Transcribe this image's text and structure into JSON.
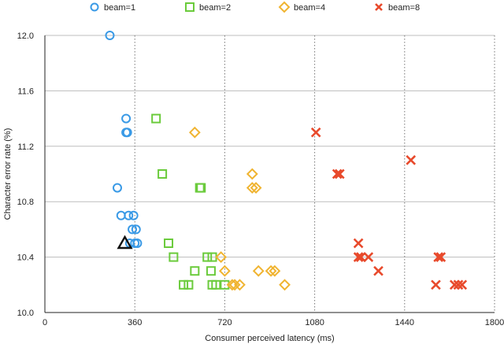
{
  "chart_data": {
    "type": "scatter",
    "title": "",
    "xlabel": "Consumer perceived latency (ms)",
    "ylabel": "Character error rate (%)",
    "xlim": [
      0,
      1800
    ],
    "ylim": [
      10.0,
      12.0
    ],
    "xticks": [
      0,
      360,
      720,
      1080,
      1440,
      1800
    ],
    "yticks": [
      10.0,
      10.4,
      10.8,
      11.2,
      11.6,
      12.0
    ],
    "x_tick_labels": [
      "0",
      "360",
      "720",
      "1080",
      "1440",
      "1800"
    ],
    "y_tick_labels": [
      "10.0",
      "10.4",
      "10.8",
      "11.2",
      "11.6",
      "12.0"
    ],
    "grid": {
      "horizontal": "solid",
      "vertical": "dotted"
    },
    "legend_position": "top",
    "series": [
      {
        "name": "beam=1",
        "marker": "circle",
        "color": "#3a9ae6",
        "points": [
          [
            260,
            12.0
          ],
          [
            325,
            11.4
          ],
          [
            325,
            11.3
          ],
          [
            330,
            11.3
          ],
          [
            290,
            10.9
          ],
          [
            305,
            10.7
          ],
          [
            335,
            10.7
          ],
          [
            355,
            10.7
          ],
          [
            350,
            10.6
          ],
          [
            365,
            10.6
          ],
          [
            340,
            10.5
          ],
          [
            360,
            10.5
          ],
          [
            370,
            10.5
          ]
        ]
      },
      {
        "name": "beam=2",
        "marker": "square",
        "color": "#6bcb3c",
        "points": [
          [
            445,
            11.4
          ],
          [
            470,
            11.0
          ],
          [
            620,
            10.9
          ],
          [
            625,
            10.9
          ],
          [
            495,
            10.5
          ],
          [
            515,
            10.4
          ],
          [
            650,
            10.4
          ],
          [
            670,
            10.4
          ],
          [
            600,
            10.3
          ],
          [
            665,
            10.3
          ],
          [
            555,
            10.2
          ],
          [
            575,
            10.2
          ],
          [
            670,
            10.2
          ],
          [
            685,
            10.2
          ],
          [
            720,
            10.2
          ]
        ]
      },
      {
        "name": "beam=4",
        "marker": "diamond",
        "color": "#f0b431",
        "points": [
          [
            600,
            11.3
          ],
          [
            830,
            11.0
          ],
          [
            830,
            10.9
          ],
          [
            845,
            10.9
          ],
          [
            705,
            10.4
          ],
          [
            720,
            10.3
          ],
          [
            855,
            10.3
          ],
          [
            905,
            10.3
          ],
          [
            920,
            10.3
          ],
          [
            750,
            10.2
          ],
          [
            760,
            10.2
          ],
          [
            780,
            10.2
          ],
          [
            960,
            10.2
          ]
        ]
      },
      {
        "name": "beam=8",
        "marker": "x",
        "color": "#e84a2c",
        "points": [
          [
            1085,
            11.3
          ],
          [
            1170,
            11.0
          ],
          [
            1180,
            11.0
          ],
          [
            1465,
            11.1
          ],
          [
            1255,
            10.5
          ],
          [
            1255,
            10.4
          ],
          [
            1265,
            10.4
          ],
          [
            1295,
            10.4
          ],
          [
            1335,
            10.3
          ],
          [
            1575,
            10.4
          ],
          [
            1585,
            10.4
          ],
          [
            1565,
            10.2
          ],
          [
            1640,
            10.2
          ],
          [
            1655,
            10.2
          ],
          [
            1670,
            10.2
          ]
        ]
      }
    ],
    "highlight": {
      "marker": "triangle",
      "color": "#111111",
      "x": 320,
      "y": 10.5
    }
  }
}
